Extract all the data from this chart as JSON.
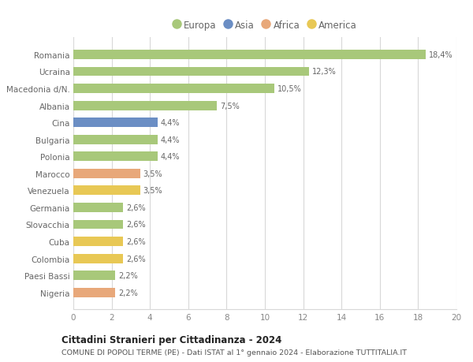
{
  "categories": [
    "Romania",
    "Ucraina",
    "Macedonia d/N.",
    "Albania",
    "Cina",
    "Bulgaria",
    "Polonia",
    "Marocco",
    "Venezuela",
    "Germania",
    "Slovacchia",
    "Cuba",
    "Colombia",
    "Paesi Bassi",
    "Nigeria"
  ],
  "values": [
    18.4,
    12.3,
    10.5,
    7.5,
    4.4,
    4.4,
    4.4,
    3.5,
    3.5,
    2.6,
    2.6,
    2.6,
    2.6,
    2.2,
    2.2
  ],
  "labels": [
    "18,4%",
    "12,3%",
    "10,5%",
    "7,5%",
    "4,4%",
    "4,4%",
    "4,4%",
    "3,5%",
    "3,5%",
    "2,6%",
    "2,6%",
    "2,6%",
    "2,6%",
    "2,2%",
    "2,2%"
  ],
  "continents": [
    "Europa",
    "Europa",
    "Europa",
    "Europa",
    "Asia",
    "Europa",
    "Europa",
    "Africa",
    "America",
    "Europa",
    "Europa",
    "America",
    "America",
    "Europa",
    "Africa"
  ],
  "continent_colors": {
    "Europa": "#a8c87a",
    "Asia": "#6b8ec4",
    "Africa": "#e8a87a",
    "America": "#e8c855"
  },
  "legend_items": [
    {
      "label": "Europa",
      "color": "#a8c87a"
    },
    {
      "label": "Asia",
      "color": "#6b8ec4"
    },
    {
      "label": "Africa",
      "color": "#e8a87a"
    },
    {
      "label": "America",
      "color": "#e8c855"
    }
  ],
  "xlim": [
    0,
    20
  ],
  "xticks": [
    0,
    2,
    4,
    6,
    8,
    10,
    12,
    14,
    16,
    18,
    20
  ],
  "title": "Cittadini Stranieri per Cittadinanza - 2024",
  "subtitle": "COMUNE DI POPOLI TERME (PE) - Dati ISTAT al 1° gennaio 2024 - Elaborazione TUTTITALIA.IT",
  "background_color": "#ffffff",
  "grid_color": "#d8d8d8",
  "bar_height": 0.55
}
